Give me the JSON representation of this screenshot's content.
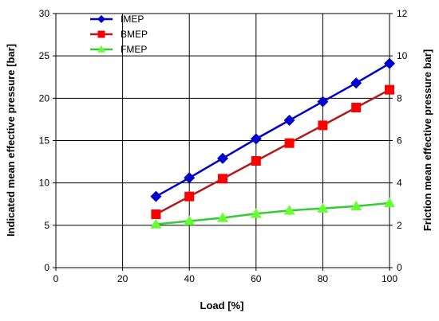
{
  "chart_data": {
    "type": "line",
    "xlabel": "Load [%]",
    "ylabel": "Indicated mean effective pressure [bar]",
    "y2label": "Friction mean effective pressure bar]",
    "xlim": [
      0,
      100
    ],
    "ylim": [
      0,
      30
    ],
    "y2lim": [
      0,
      12
    ],
    "xticks": [
      0,
      20,
      40,
      60,
      80,
      100
    ],
    "yticks": [
      0,
      5,
      10,
      15,
      20,
      25,
      30
    ],
    "y2ticks": [
      0,
      2,
      4,
      6,
      8,
      10,
      12
    ],
    "grid": true,
    "legend_position": "top-left",
    "x": [
      30,
      40,
      50,
      60,
      70,
      80,
      90,
      100
    ],
    "series": [
      {
        "name": "IMEP",
        "axis": "left",
        "color": "#0000cc",
        "marker": "diamond",
        "values": [
          8.4,
          10.6,
          12.9,
          15.2,
          17.4,
          19.6,
          21.8,
          24.1
        ]
      },
      {
        "name": "BMEP",
        "axis": "left",
        "color": "#b01c1c",
        "markerColor": "#ff0000",
        "marker": "square",
        "values": [
          6.3,
          8.4,
          10.5,
          12.6,
          14.7,
          16.8,
          18.9,
          21.0
        ]
      },
      {
        "name": "FMEP",
        "axis": "right",
        "color": "#33cc33",
        "markerColor": "#66ff33",
        "marker": "triangle",
        "values": [
          2.05,
          2.2,
          2.35,
          2.55,
          2.7,
          2.8,
          2.9,
          3.05
        ]
      }
    ]
  }
}
